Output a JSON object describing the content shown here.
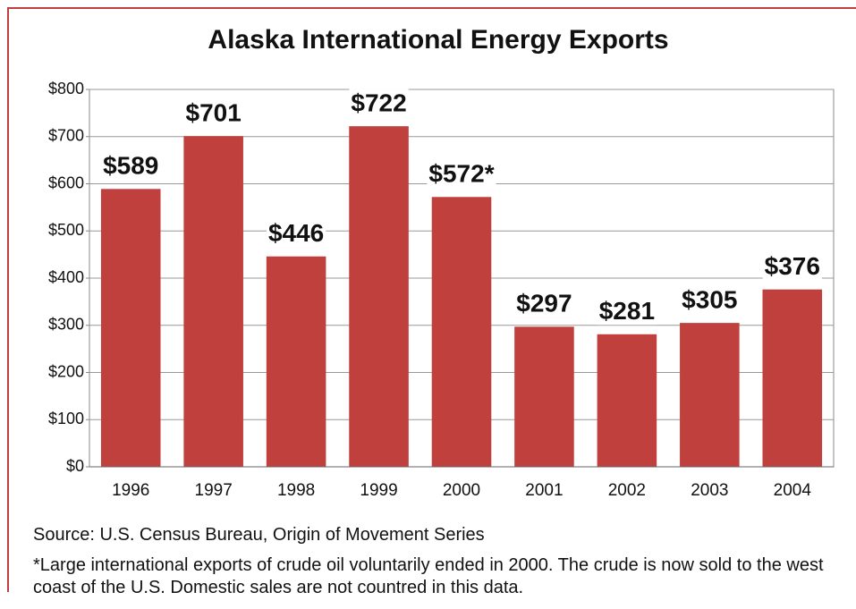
{
  "chart_data": {
    "type": "bar",
    "title": "Alaska International Energy Exports",
    "categories": [
      "1996",
      "1997",
      "1998",
      "1999",
      "2000",
      "2001",
      "2002",
      "2003",
      "2004"
    ],
    "values": [
      589,
      701,
      446,
      722,
      572,
      297,
      281,
      305,
      376
    ],
    "value_labels": [
      "$589",
      "$701",
      "$446",
      "$722",
      "$572*",
      "$297",
      "$281",
      "$305",
      "$376"
    ],
    "color": "#c0403e",
    "ylim": [
      0,
      800
    ],
    "yticks": [
      {
        "value": 0,
        "label": "$0"
      },
      {
        "value": 100,
        "label": "$100"
      },
      {
        "value": 200,
        "label": "$200"
      },
      {
        "value": 300,
        "label": "$300"
      },
      {
        "value": 400,
        "label": "$400"
      },
      {
        "value": 500,
        "label": "$500"
      },
      {
        "value": 600,
        "label": "$600"
      },
      {
        "value": 700,
        "label": "$700"
      },
      {
        "value": 800,
        "label": "$800"
      }
    ],
    "grid": true,
    "source": "Source: U.S. Census Bureau, Origin of Movement Series",
    "footnote": "*Large international exports of crude oil voluntarily ended in 2000. The crude is now sold to the west coast of the U.S. Domestic sales are not countred in this data."
  }
}
